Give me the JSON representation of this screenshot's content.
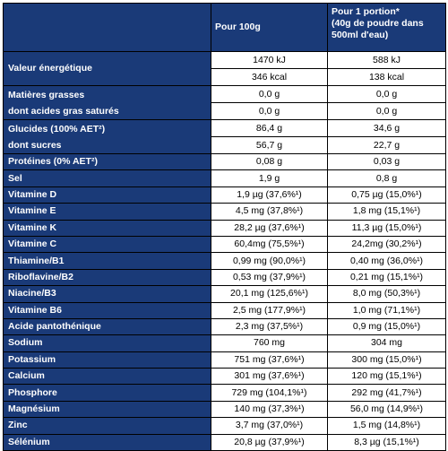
{
  "header": {
    "col1": "Pour 100g",
    "col2_line1": "Pour 1 portion*",
    "col2_line2": "(40g de poudre dans",
    "col2_line3": "500ml d'eau)"
  },
  "energy": {
    "label": "Valeur énergétique",
    "v100_kj": "1470 kJ",
    "v100_kcal": "346 kcal",
    "vp_kj": "588 kJ",
    "vp_kcal": "138 kcal"
  },
  "rows_pair": [
    {
      "label1": "Matières grasses",
      "a1": "0,0 g",
      "b1": "0,0 g",
      "label2": "dont acides gras saturés",
      "a2": "0,0 g",
      "b2": "0,0 g"
    },
    {
      "label1": "Glucides (100% AET²)",
      "a1": "86,4 g",
      "b1": "34,6 g",
      "label2": "dont sucres",
      "a2": "56,7 g",
      "b2": "22,7 g"
    }
  ],
  "rows": [
    {
      "label": "Protéines (0% AET²)",
      "a": "0,08 g",
      "b": "0,03 g"
    },
    {
      "label": "Sel",
      "a": "1,9 g",
      "b": "0,8 g"
    },
    {
      "label": "Vitamine D",
      "a": "1,9 µg (37,6%¹)",
      "b": "0,75 µg (15,0%¹)"
    },
    {
      "label": "Vitamine E",
      "a": "4,5 mg (37,8%¹)",
      "b": "1,8 mg (15,1%¹)"
    },
    {
      "label": "Vitamine K",
      "a": "28,2 µg (37,6%¹)",
      "b": "11,3 µg (15,0%¹)"
    },
    {
      "label": "Vitamine C",
      "a": "60,4mg (75,5%¹)",
      "b": "24,2mg (30,2%¹)"
    },
    {
      "label": "Thiamine/B1",
      "a": "0,99 mg (90,0%¹)",
      "b": "0,40 mg (36,0%¹)"
    },
    {
      "label": "Riboflavine/B2",
      "a": "0,53 mg (37,9%¹)",
      "b": "0,21 mg (15,1%¹)"
    },
    {
      "label": "Niacine/B3",
      "a": "20,1 mg (125,6%¹)",
      "b": "8,0 mg (50,3%¹)"
    },
    {
      "label": "Vitamine B6",
      "a": "2,5 mg (177,9%¹)",
      "b": "1,0 mg (71,1%¹)"
    },
    {
      "label": "Acide pantothénique",
      "a": "2,3 mg (37,5%¹)",
      "b": "0,9 mg (15,0%¹)"
    },
    {
      "label": "Sodium",
      "a": "760 mg",
      "b": "304 mg"
    },
    {
      "label": "Potassium",
      "a": "751 mg (37,6%¹)",
      "b": "300 mg (15,0%¹)"
    },
    {
      "label": "Calcium",
      "a": "301 mg (37,6%¹)",
      "b": "120 mg (15,1%¹)"
    },
    {
      "label": "Phosphore",
      "a": "729 mg (104,1%¹)",
      "b": "292 mg (41,7%¹)"
    },
    {
      "label": "Magnésium",
      "a": "140 mg (37,3%¹)",
      "b": "56,0 mg (14,9%¹)"
    },
    {
      "label": "Zinc",
      "a": "3,7 mg (37,0%¹)",
      "b": "1,5 mg (14,8%¹)"
    },
    {
      "label": "Sélénium",
      "a": "20,8 µg (37,9%¹)",
      "b": "8,3 µg (15,1%¹)"
    }
  ],
  "colors": {
    "header_bg": "#1a3a78",
    "header_text": "#ffffff",
    "cell_bg": "#ffffff"
  }
}
